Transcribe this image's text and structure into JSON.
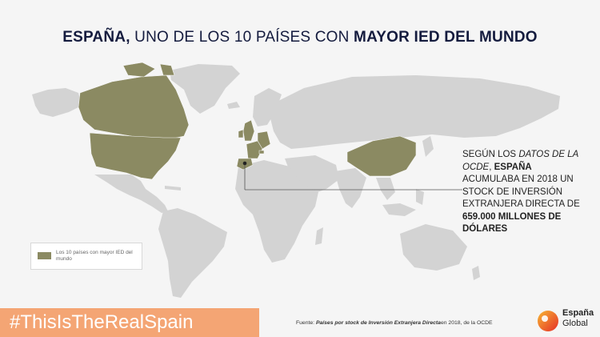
{
  "title": {
    "part1_bold": "ESPAÑA,",
    "part2": " UNO DE LOS 10 PAÍSES CON ",
    "part3_bold": "MAYOR IED DEL MUNDO"
  },
  "callout": {
    "t1": "SEGÚN LOS ",
    "t2_italic": "DATOS DE LA OCDE",
    "t3": ", ",
    "t4_bold": "ESPAÑA",
    "t5": " ACUMULABA EN 2018 UN STOCK DE INVERSIÓN EXTRANJERA DIRECTA DE ",
    "t6_bold": "659.000 MILLONES DE DÓLARES"
  },
  "legend": {
    "label": "Los 10 países con mayor IED del mundo"
  },
  "hashtag": "#ThisIsTheRealSpain",
  "source": {
    "prefix": "Fuente: ",
    "bold": "Países por stock de Inversión Extranjera Directa",
    "suffix": "en 2018, de la OCDE"
  },
  "logo": {
    "line1": "España",
    "line2": "Global"
  },
  "colors": {
    "highlight": "#8b8a62",
    "land": "#d3d3d3",
    "background": "#f5f5f5",
    "title": "#141b3e",
    "hashtag_bg": "#f4a574"
  },
  "highlighted_countries": [
    "Estados Unidos",
    "Canadá",
    "Reino Unido",
    "Irlanda",
    "Países Bajos",
    "Alemania",
    "Francia",
    "Suiza",
    "España",
    "China"
  ]
}
